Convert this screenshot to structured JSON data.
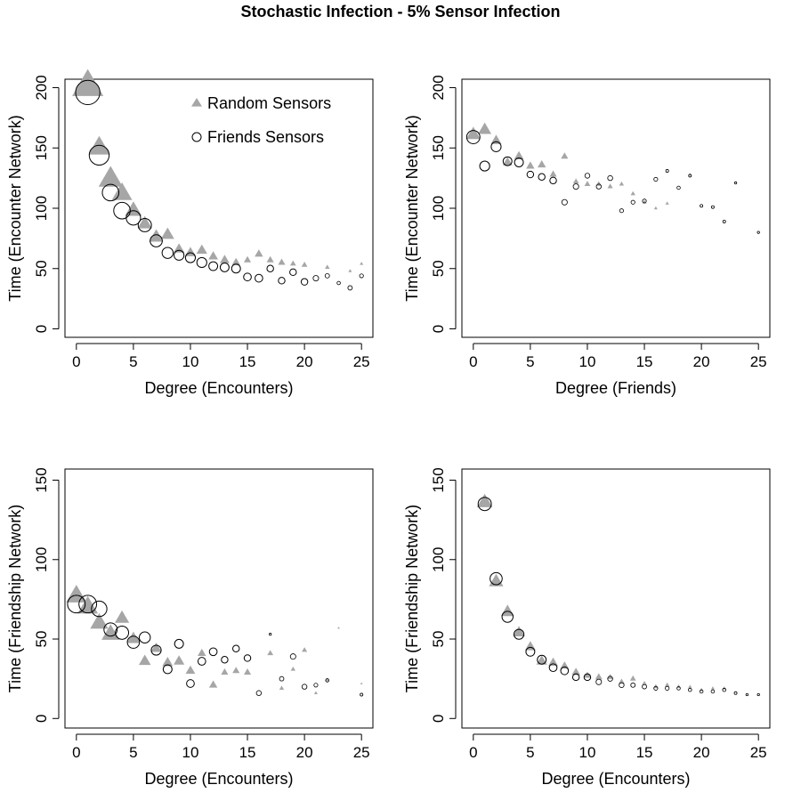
{
  "title": "Stochastic Infection - 5% Sensor Infection",
  "colors": {
    "random": "#a6a6a6",
    "friends_stroke": "#000000",
    "axis": "#000000"
  },
  "legend": {
    "random_label": "Random Sensors",
    "friends_label": "Friends Sensors"
  },
  "chart_data": [
    {
      "type": "scatter",
      "name": "panel-top-left",
      "xlabel": "Degree (Encounters)",
      "ylabel": "Time (Encounter Network)",
      "xlim": [
        -1,
        26
      ],
      "ylim": [
        -7,
        207
      ],
      "xticks": [
        0,
        5,
        10,
        15,
        20,
        25
      ],
      "yticks": [
        0,
        50,
        100,
        150,
        200
      ],
      "legend": "top-right",
      "series": [
        {
          "name": "Random Sensors",
          "marker": "triangle",
          "points": [
            [
              1,
              201,
              2.6
            ],
            [
              2,
              150,
              1.8
            ],
            [
              3,
              124,
              2.0
            ],
            [
              4,
              112,
              1.7
            ],
            [
              5,
              98,
              1.4
            ],
            [
              6,
              87,
              1.2
            ],
            [
              7,
              76,
              1.2
            ],
            [
              8,
              78,
              1.1
            ],
            [
              9,
              66,
              0.9
            ],
            [
              10,
              63,
              0.9
            ],
            [
              11,
              65,
              0.9
            ],
            [
              12,
              60,
              0.8
            ],
            [
              13,
              57,
              0.8
            ],
            [
              14,
              55,
              0.7
            ],
            [
              15,
              57,
              0.6
            ],
            [
              16,
              62,
              0.7
            ],
            [
              17,
              57,
              0.6
            ],
            [
              18,
              55,
              0.6
            ],
            [
              19,
              54,
              0.5
            ],
            [
              20,
              53,
              0.5
            ],
            [
              22,
              51,
              0.4
            ],
            [
              24,
              48,
              0.3
            ],
            [
              25,
              54,
              0.3
            ]
          ]
        },
        {
          "name": "Friends Sensors",
          "marker": "circle",
          "points": [
            [
              1,
              196,
              2.2
            ],
            [
              2,
              144,
              1.8
            ],
            [
              3,
              113,
              1.5
            ],
            [
              4,
              98,
              1.5
            ],
            [
              5,
              92,
              1.3
            ],
            [
              6,
              86,
              1.2
            ],
            [
              7,
              73,
              1.1
            ],
            [
              8,
              63,
              1.0
            ],
            [
              9,
              61,
              0.9
            ],
            [
              10,
              59,
              0.9
            ],
            [
              11,
              55,
              0.9
            ],
            [
              12,
              52,
              0.8
            ],
            [
              13,
              51,
              0.8
            ],
            [
              14,
              50,
              0.8
            ],
            [
              15,
              43,
              0.7
            ],
            [
              16,
              42,
              0.7
            ],
            [
              17,
              50,
              0.6
            ],
            [
              18,
              40,
              0.6
            ],
            [
              19,
              47,
              0.6
            ],
            [
              20,
              39,
              0.6
            ],
            [
              21,
              42,
              0.5
            ],
            [
              22,
              44,
              0.4
            ],
            [
              23,
              38,
              0.3
            ],
            [
              24,
              34,
              0.4
            ],
            [
              25,
              44,
              0.35
            ]
          ]
        }
      ]
    },
    {
      "type": "scatter",
      "name": "panel-top-right",
      "xlabel": "Degree (Friends)",
      "ylabel": "Time (Encounter Network)",
      "xlim": [
        -1,
        26
      ],
      "ylim": [
        -7,
        207
      ],
      "xticks": [
        0,
        5,
        10,
        15,
        20,
        25
      ],
      "yticks": [
        0,
        50,
        100,
        150,
        200
      ],
      "series": [
        {
          "name": "Random Sensors",
          "marker": "triangle",
          "points": [
            [
              0,
              161,
              1.2
            ],
            [
              1,
              165,
              1.1
            ],
            [
              2,
              156,
              0.9
            ],
            [
              3,
              138,
              0.8
            ],
            [
              4,
              143,
              0.8
            ],
            [
              5,
              135,
              0.7
            ],
            [
              6,
              136,
              0.7
            ],
            [
              7,
              128,
              0.6
            ],
            [
              8,
              143,
              0.6
            ],
            [
              9,
              122,
              0.5
            ],
            [
              10,
              120,
              0.5
            ],
            [
              11,
              120,
              0.45
            ],
            [
              12,
              118,
              0.45
            ],
            [
              13,
              120,
              0.4
            ],
            [
              14,
              112,
              0.4
            ],
            [
              15,
              105,
              0.35
            ],
            [
              16,
              100,
              0.3
            ],
            [
              17,
              104,
              0.3
            ],
            [
              19,
              128,
              0.25
            ]
          ]
        },
        {
          "name": "Friends Sensors",
          "marker": "circle",
          "points": [
            [
              0,
              159,
              1.2
            ],
            [
              1,
              135,
              0.9
            ],
            [
              2,
              151,
              0.9
            ],
            [
              3,
              139,
              0.8
            ],
            [
              4,
              138,
              0.8
            ],
            [
              5,
              128,
              0.6
            ],
            [
              6,
              126,
              0.6
            ],
            [
              7,
              123,
              0.6
            ],
            [
              8,
              105,
              0.5
            ],
            [
              9,
              118,
              0.5
            ],
            [
              10,
              127,
              0.45
            ],
            [
              11,
              118,
              0.45
            ],
            [
              12,
              125,
              0.45
            ],
            [
              13,
              98,
              0.35
            ],
            [
              14,
              105,
              0.35
            ],
            [
              15,
              106,
              0.35
            ],
            [
              16,
              124,
              0.35
            ],
            [
              17,
              131,
              0.25
            ],
            [
              18,
              117,
              0.3
            ],
            [
              19,
              127,
              0.25
            ],
            [
              20,
              102,
              0.25
            ],
            [
              21,
              101,
              0.25
            ],
            [
              22,
              89,
              0.25
            ],
            [
              23,
              121,
              0.2
            ],
            [
              25,
              80,
              0.2
            ]
          ]
        }
      ]
    },
    {
      "type": "scatter",
      "name": "panel-bottom-left",
      "xlabel": "Degree (Encounters)",
      "ylabel": "Time (Friendship Network)",
      "xlim": [
        -1,
        26
      ],
      "ylim": [
        -6,
        157
      ],
      "xticks": [
        0,
        5,
        10,
        15,
        20,
        25
      ],
      "yticks": [
        0,
        50,
        100,
        150
      ],
      "series": [
        {
          "name": "Random Sensors",
          "marker": "triangle",
          "points": [
            [
              0,
              77,
              1.7
            ],
            [
              1,
              70,
              1.7
            ],
            [
              2,
              60,
              1.5
            ],
            [
              3,
              53,
              1.5
            ],
            [
              4,
              63,
              1.2
            ],
            [
              5,
              50,
              1.1
            ],
            [
              6,
              36,
              1.0
            ],
            [
              7,
              44,
              0.9
            ],
            [
              8,
              35,
              0.9
            ],
            [
              9,
              36,
              0.9
            ],
            [
              10,
              30,
              0.8
            ],
            [
              11,
              41,
              0.7
            ],
            [
              12,
              21,
              0.7
            ],
            [
              13,
              29,
              0.6
            ],
            [
              14,
              30,
              0.6
            ],
            [
              15,
              29,
              0.6
            ],
            [
              17,
              41,
              0.5
            ],
            [
              18,
              19,
              0.4
            ],
            [
              19,
              31,
              0.4
            ],
            [
              20,
              43,
              0.45
            ],
            [
              21,
              16,
              0.3
            ],
            [
              22,
              24,
              0.3
            ],
            [
              23,
              57,
              0.2
            ],
            [
              25,
              22,
              0.2
            ]
          ]
        },
        {
          "name": "Friends Sensors",
          "marker": "circle",
          "points": [
            [
              0,
              72,
              1.6
            ],
            [
              1,
              72,
              1.6
            ],
            [
              2,
              69,
              1.4
            ],
            [
              3,
              56,
              1.2
            ],
            [
              4,
              54,
              1.2
            ],
            [
              5,
              48,
              1.1
            ],
            [
              6,
              51,
              1.0
            ],
            [
              7,
              43,
              0.9
            ],
            [
              8,
              31,
              0.8
            ],
            [
              9,
              47,
              0.8
            ],
            [
              10,
              22,
              0.7
            ],
            [
              11,
              36,
              0.7
            ],
            [
              12,
              42,
              0.7
            ],
            [
              13,
              37,
              0.6
            ],
            [
              14,
              44,
              0.6
            ],
            [
              15,
              38,
              0.6
            ],
            [
              16,
              16,
              0.45
            ],
            [
              17,
              53,
              0.2
            ],
            [
              18,
              25,
              0.4
            ],
            [
              19,
              39,
              0.5
            ],
            [
              20,
              20,
              0.45
            ],
            [
              21,
              21,
              0.35
            ],
            [
              22,
              24,
              0.3
            ],
            [
              25,
              15,
              0.25
            ]
          ]
        }
      ]
    },
    {
      "type": "scatter",
      "name": "panel-bottom-right",
      "xlabel": "Degree (Encounters)",
      "ylabel": "Time (Friendship Network)",
      "xlim": [
        -1,
        26
      ],
      "ylim": [
        -6,
        157
      ],
      "xticks": [
        0,
        5,
        10,
        15,
        20,
        25
      ],
      "yticks": [
        0,
        50,
        100,
        150
      ],
      "series": [
        {
          "name": "Random Sensors",
          "marker": "triangle",
          "points": [
            [
              1,
              136,
              1.3
            ],
            [
              2,
              86,
              1.2
            ],
            [
              3,
              67,
              1.1
            ],
            [
              4,
              54,
              1.0
            ],
            [
              5,
              45,
              0.9
            ],
            [
              6,
              36,
              0.9
            ],
            [
              7,
              35,
              0.8
            ],
            [
              8,
              33,
              0.7
            ],
            [
              9,
              29,
              0.7
            ],
            [
              10,
              27,
              0.6
            ],
            [
              11,
              26,
              0.6
            ],
            [
              12,
              26,
              0.5
            ],
            [
              13,
              23,
              0.5
            ],
            [
              14,
              25,
              0.5
            ],
            [
              15,
              22,
              0.4
            ],
            [
              16,
              20,
              0.4
            ],
            [
              17,
              21,
              0.4
            ],
            [
              18,
              20,
              0.35
            ],
            [
              19,
              20,
              0.3
            ],
            [
              20,
              18,
              0.3
            ],
            [
              21,
              19,
              0.3
            ],
            [
              22,
              19,
              0.3
            ]
          ]
        },
        {
          "name": "Friends Sensors",
          "marker": "circle",
          "points": [
            [
              1,
              135,
              1.2
            ],
            [
              2,
              88,
              1.1
            ],
            [
              3,
              64,
              1.0
            ],
            [
              4,
              53,
              0.9
            ],
            [
              5,
              42,
              0.8
            ],
            [
              6,
              37,
              0.8
            ],
            [
              7,
              32,
              0.7
            ],
            [
              8,
              30,
              0.7
            ],
            [
              9,
              26,
              0.6
            ],
            [
              10,
              26,
              0.6
            ],
            [
              11,
              23,
              0.5
            ],
            [
              12,
              25,
              0.45
            ],
            [
              13,
              21,
              0.45
            ],
            [
              14,
              21,
              0.4
            ],
            [
              15,
              20,
              0.4
            ],
            [
              16,
              19,
              0.35
            ],
            [
              17,
              19,
              0.35
            ],
            [
              18,
              19,
              0.3
            ],
            [
              19,
              18,
              0.3
            ],
            [
              20,
              17,
              0.3
            ],
            [
              21,
              17,
              0.3
            ],
            [
              22,
              18,
              0.3
            ],
            [
              23,
              16,
              0.25
            ],
            [
              24,
              15,
              0.2
            ],
            [
              25,
              15,
              0.2
            ]
          ]
        }
      ]
    }
  ]
}
